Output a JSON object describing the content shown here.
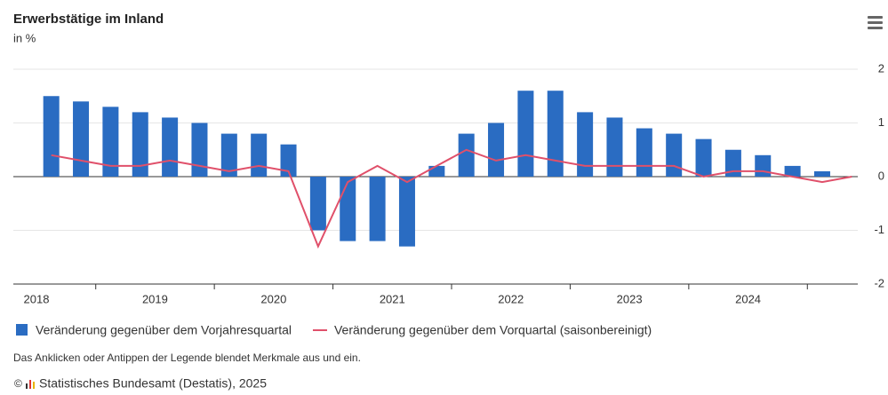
{
  "chart_data": {
    "type": "bar_line",
    "title": "Erwerbstätige im Inland",
    "subtitle": "in %",
    "categories": [
      "2018",
      null,
      null,
      null,
      "2019",
      null,
      null,
      null,
      "2020",
      null,
      null,
      null,
      "2021",
      null,
      null,
      null,
      "2022",
      null,
      null,
      null,
      "2023",
      null,
      null,
      null,
      "2024",
      null,
      null,
      null
    ],
    "series": [
      {
        "name": "Veränderung gegenüber dem Vorjahresquartal",
        "type": "bar",
        "color": "#2a6cc2",
        "values": [
          1.5,
          1.4,
          1.3,
          1.2,
          1.1,
          1.0,
          0.8,
          0.8,
          0.6,
          -1.0,
          -1.2,
          -1.2,
          -1.3,
          0.2,
          0.8,
          1.0,
          1.6,
          1.6,
          1.2,
          1.1,
          0.9,
          0.8,
          0.7,
          0.5,
          0.4,
          0.2,
          0.1,
          0.0
        ]
      },
      {
        "name": "Veränderung gegenüber dem Vorquartal (saisonbereinigt)",
        "type": "line",
        "color": "#e0506a",
        "values": [
          0.4,
          0.3,
          0.2,
          0.2,
          0.3,
          0.2,
          0.1,
          0.2,
          0.1,
          -1.3,
          -0.1,
          0.2,
          -0.1,
          0.2,
          0.5,
          0.3,
          0.4,
          0.3,
          0.2,
          0.2,
          0.2,
          0.2,
          0.0,
          0.1,
          0.1,
          0.0,
          -0.1,
          0.0
        ]
      }
    ],
    "ylim": [
      -2,
      2
    ],
    "yticks": [
      -2,
      -1,
      0,
      1,
      2
    ],
    "grid": true,
    "note": "Das Anklicken oder Antippen der Legende blendet Merkmale aus und ein.",
    "credits": "Statistisches Bundesamt (Destatis), 2025"
  }
}
